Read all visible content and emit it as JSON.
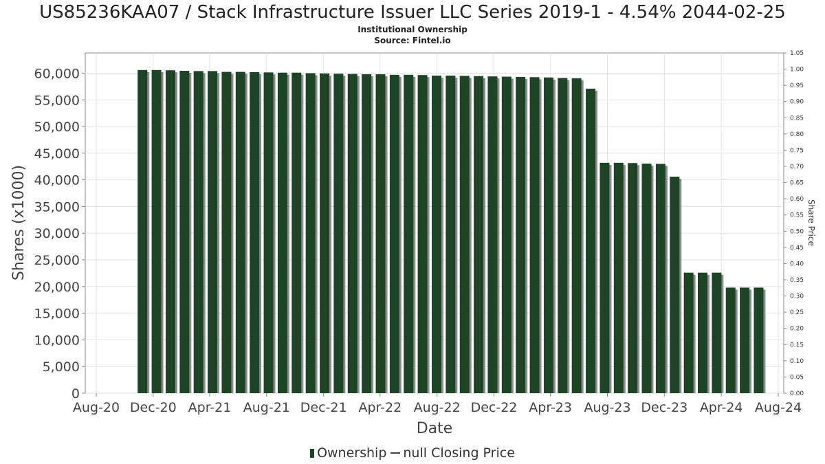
{
  "header": {
    "title": "US85236KAA07 / Stack Infrastructure Issuer LLC Series 2019-1 - 4.54% 2044-02-25",
    "subtitle_1": "Institutional Ownership",
    "subtitle_2": "Source: Fintel.io"
  },
  "legend": {
    "ownership_label": "Ownership",
    "price_label": "null Closing Price"
  },
  "colors": {
    "bar": "#1e4426",
    "bar_shadow": "#8c8c8c",
    "grid": "#e2e2e2",
    "axis": "#888888"
  },
  "chart_data": {
    "type": "bar",
    "title": "US85236KAA07 / Stack Infrastructure Issuer LLC Series 2019-1 - 4.54% 2044-02-25",
    "xlabel": "Date",
    "ylabel": "Shares (x1000)",
    "y2label": "Share Price",
    "x_range": [
      "2020-08-01",
      "2024-08-01"
    ],
    "ylim": [
      0,
      63800
    ],
    "y2lim": [
      0,
      1.05
    ],
    "grid": true,
    "legend_position": "bottom",
    "x_ticks": [
      "Aug-20",
      "Dec-20",
      "Apr-21",
      "Aug-21",
      "Dec-21",
      "Apr-22",
      "Aug-22",
      "Dec-22",
      "Apr-23",
      "Aug-23",
      "Dec-23",
      "Apr-24",
      "Aug-24"
    ],
    "y_ticks": [
      "0",
      "5,000",
      "10,000",
      "15,000",
      "20,000",
      "25,000",
      "30,000",
      "35,000",
      "40,000",
      "45,000",
      "50,000",
      "55,000",
      "60,000"
    ],
    "y2_ticks": [
      "0.00",
      "0.05",
      "0.10",
      "0.15",
      "0.20",
      "0.25",
      "0.30",
      "0.35",
      "0.40",
      "0.45",
      "0.50",
      "0.55",
      "0.60",
      "0.65",
      "0.70",
      "0.75",
      "0.80",
      "0.85",
      "0.90",
      "0.95",
      "1.00",
      "1.05"
    ],
    "series": [
      {
        "name": "Ownership",
        "x": [
          "2020-11-08",
          "2020-12-08",
          "2021-01-07",
          "2021-02-06",
          "2021-03-08",
          "2021-04-07",
          "2021-05-07",
          "2021-06-06",
          "2021-07-06",
          "2021-08-05",
          "2021-09-04",
          "2021-10-04",
          "2021-11-03",
          "2021-12-03",
          "2022-01-02",
          "2022-02-01",
          "2022-03-03",
          "2022-04-02",
          "2022-05-02",
          "2022-06-01",
          "2022-07-01",
          "2022-07-31",
          "2022-08-30",
          "2022-09-29",
          "2022-10-29",
          "2022-11-28",
          "2022-12-28",
          "2023-01-27",
          "2023-02-26",
          "2023-03-28",
          "2023-04-27",
          "2023-05-27",
          "2023-06-26",
          "2023-07-26",
          "2023-08-25",
          "2023-09-24",
          "2023-10-24",
          "2023-11-23",
          "2023-12-23",
          "2024-01-22",
          "2024-02-21",
          "2024-03-22",
          "2024-04-21",
          "2024-05-21",
          "2024-06-20"
        ],
        "values": [
          60600,
          60600,
          60550,
          60450,
          60400,
          60400,
          60250,
          60250,
          60200,
          60150,
          60100,
          60100,
          60000,
          59950,
          59900,
          59850,
          59800,
          59800,
          59700,
          59700,
          59650,
          59550,
          59550,
          59500,
          59450,
          59400,
          59350,
          59300,
          59250,
          59200,
          59100,
          59050,
          57100,
          43200,
          43200,
          43150,
          43050,
          43000,
          40600,
          22600,
          22600,
          22600,
          19800,
          19800,
          19800
        ]
      },
      {
        "name": "null Closing Price",
        "values": []
      }
    ]
  }
}
